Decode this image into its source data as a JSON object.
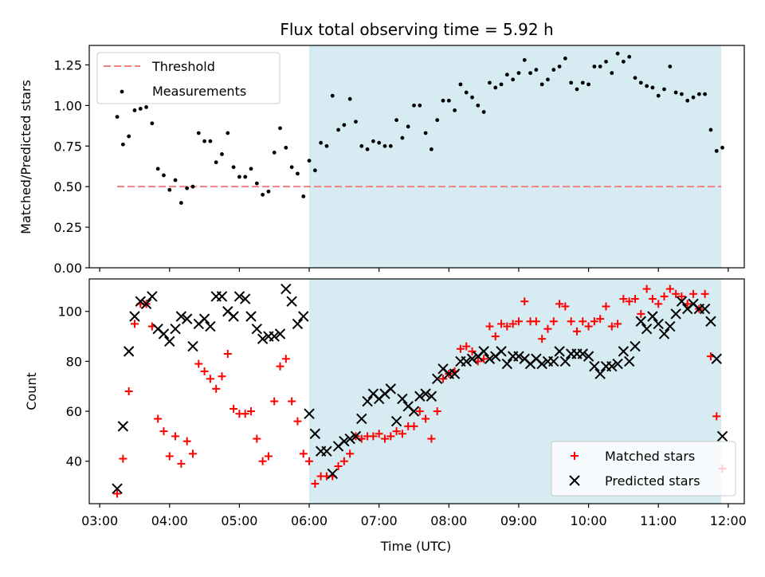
{
  "title": "Flux total observing time = 5.92 h",
  "colors": {
    "threshold": "#f08080",
    "measurements": "#000000",
    "matched": "#ff0000",
    "predicted": "#000000",
    "shade": "#add8e6"
  },
  "chart_data": [
    {
      "type": "scatter",
      "ylabel": "Matched/Predicted stars",
      "xlim_hours": [
        2.85,
        12.23
      ],
      "ylim": [
        0,
        1.37
      ],
      "yticks": [
        "0.00",
        "0.25",
        "0.50",
        "0.75",
        "1.00",
        "1.25"
      ],
      "ytick_values": [
        0,
        0.25,
        0.5,
        0.75,
        1.0,
        1.25
      ],
      "shaded_span": [
        "06:00",
        "11:54"
      ],
      "threshold": {
        "name": "Threshold",
        "value": 0.5,
        "x_start": "03:15",
        "x_end": "11:54"
      },
      "legend": {
        "location": "upper left",
        "entries": [
          "Threshold",
          "Measurements"
        ]
      },
      "series": [
        {
          "name": "Measurements",
          "x": [
            "03:15",
            "03:20",
            "03:25",
            "03:30",
            "03:35",
            "03:40",
            "03:45",
            "03:50",
            "03:55",
            "04:00",
            "04:05",
            "04:10",
            "04:15",
            "04:20",
            "04:25",
            "04:30",
            "04:35",
            "04:40",
            "04:45",
            "04:50",
            "04:55",
            "05:00",
            "05:05",
            "05:10",
            "05:15",
            "05:20",
            "05:25",
            "05:30",
            "05:35",
            "05:40",
            "05:45",
            "05:50",
            "05:55",
            "06:00",
            "06:05",
            "06:10",
            "06:15",
            "06:20",
            "06:25",
            "06:30",
            "06:35",
            "06:40",
            "06:45",
            "06:50",
            "06:55",
            "07:00",
            "07:05",
            "07:10",
            "07:15",
            "07:20",
            "07:25",
            "07:30",
            "07:35",
            "07:40",
            "07:45",
            "07:50",
            "07:55",
            "08:00",
            "08:05",
            "08:10",
            "08:15",
            "08:20",
            "08:25",
            "08:30",
            "08:35",
            "08:40",
            "08:45",
            "08:50",
            "08:55",
            "09:00",
            "09:05",
            "09:10",
            "09:15",
            "09:20",
            "09:25",
            "09:30",
            "09:35",
            "09:40",
            "09:45",
            "09:50",
            "09:55",
            "10:00",
            "10:05",
            "10:10",
            "10:15",
            "10:20",
            "10:25",
            "10:30",
            "10:35",
            "10:40",
            "10:45",
            "10:50",
            "10:55",
            "11:00",
            "11:05",
            "11:10",
            "11:15",
            "11:20",
            "11:25",
            "11:30",
            "11:35",
            "11:40",
            "11:45",
            "11:50",
            "11:55"
          ],
          "y": [
            0.93,
            0.76,
            0.81,
            0.97,
            0.98,
            0.99,
            0.89,
            0.61,
            0.57,
            0.48,
            0.54,
            0.4,
            0.49,
            0.5,
            0.83,
            0.78,
            0.78,
            0.65,
            0.7,
            0.83,
            0.62,
            0.56,
            0.56,
            0.61,
            0.52,
            0.45,
            0.47,
            0.71,
            0.86,
            0.74,
            0.62,
            0.58,
            0.44,
            0.66,
            0.6,
            0.77,
            0.75,
            1.06,
            0.85,
            0.88,
            1.04,
            0.9,
            0.75,
            0.73,
            0.78,
            0.77,
            0.75,
            0.75,
            0.91,
            0.8,
            0.87,
            1.0,
            1.0,
            0.83,
            0.73,
            0.91,
            1.03,
            1.03,
            0.97,
            1.13,
            1.08,
            1.05,
            1.0,
            0.96,
            1.14,
            1.11,
            1.13,
            1.19,
            1.16,
            1.2,
            1.28,
            1.2,
            1.22,
            1.13,
            1.16,
            1.22,
            1.24,
            1.29,
            1.14,
            1.1,
            1.14,
            1.13,
            1.24,
            1.24,
            1.27,
            1.2,
            1.32,
            1.27,
            1.3,
            1.17,
            1.14,
            1.12,
            1.11,
            1.06,
            1.1,
            1.24,
            1.08,
            1.07,
            1.03,
            1.05,
            1.07,
            1.07,
            0.85,
            0.72,
            0.74
          ]
        }
      ]
    },
    {
      "type": "scatter",
      "xlabel": "Time (UTC)",
      "ylabel": "Count",
      "xlim_hours": [
        2.85,
        12.23
      ],
      "ylim": [
        23,
        113
      ],
      "yticks": [
        "40",
        "60",
        "80",
        "100"
      ],
      "ytick_values": [
        40,
        60,
        80,
        100
      ],
      "xticks": [
        "03:00",
        "04:00",
        "05:00",
        "06:00",
        "07:00",
        "08:00",
        "09:00",
        "10:00",
        "11:00",
        "12:00"
      ],
      "xtick_hours": [
        3,
        4,
        5,
        6,
        7,
        8,
        9,
        10,
        11,
        12
      ],
      "shaded_span": [
        "06:00",
        "11:54"
      ],
      "legend": {
        "location": "lower right",
        "entries": [
          "Matched stars",
          "Predicted stars"
        ]
      },
      "series": [
        {
          "name": "Matched stars",
          "marker": "+",
          "x": [
            "03:15",
            "03:20",
            "03:25",
            "03:30",
            "03:35",
            "03:40",
            "03:45",
            "03:50",
            "03:55",
            "04:00",
            "04:05",
            "04:10",
            "04:15",
            "04:20",
            "04:25",
            "04:30",
            "04:35",
            "04:40",
            "04:45",
            "04:50",
            "04:55",
            "05:00",
            "05:05",
            "05:10",
            "05:15",
            "05:20",
            "05:25",
            "05:30",
            "05:35",
            "05:40",
            "05:45",
            "05:50",
            "05:55",
            "06:00",
            "06:05",
            "06:10",
            "06:15",
            "06:20",
            "06:25",
            "06:30",
            "06:35",
            "06:40",
            "06:45",
            "06:50",
            "06:55",
            "07:00",
            "07:05",
            "07:10",
            "07:15",
            "07:20",
            "07:25",
            "07:30",
            "07:35",
            "07:40",
            "07:45",
            "07:50",
            "07:55",
            "08:00",
            "08:05",
            "08:10",
            "08:15",
            "08:20",
            "08:25",
            "08:30",
            "08:35",
            "08:40",
            "08:45",
            "08:50",
            "08:55",
            "09:00",
            "09:05",
            "09:10",
            "09:15",
            "09:20",
            "09:25",
            "09:30",
            "09:35",
            "09:40",
            "09:45",
            "09:50",
            "09:55",
            "10:00",
            "10:05",
            "10:10",
            "10:15",
            "10:20",
            "10:25",
            "10:30",
            "10:35",
            "10:40",
            "10:45",
            "10:50",
            "10:55",
            "11:00",
            "11:05",
            "11:10",
            "11:15",
            "11:20",
            "11:25",
            "11:30",
            "11:35",
            "11:40",
            "11:45",
            "11:50",
            "11:55"
          ],
          "y": [
            27,
            41,
            68,
            95,
            103,
            103,
            94,
            57,
            52,
            42,
            50,
            39,
            48,
            43,
            79,
            76,
            73,
            69,
            74,
            83,
            61,
            59,
            59,
            60,
            49,
            40,
            42,
            64,
            78,
            81,
            64,
            56,
            43,
            40,
            31,
            34,
            34,
            34,
            38,
            40,
            43,
            50,
            49,
            50,
            50,
            51,
            49,
            50,
            52,
            51,
            54,
            54,
            60,
            57,
            49,
            60,
            73,
            75,
            76,
            85,
            86,
            84,
            80,
            81,
            94,
            90,
            95,
            94,
            95,
            96,
            104,
            96,
            96,
            89,
            93,
            96,
            103,
            102,
            96,
            92,
            96,
            94,
            96,
            97,
            102,
            94,
            95,
            105,
            104,
            105,
            99,
            109,
            105,
            103,
            106,
            109,
            107,
            106,
            103,
            107,
            101,
            107,
            82,
            58,
            37
          ]
        },
        {
          "name": "Predicted stars",
          "marker": "x",
          "x": [
            "03:15",
            "03:20",
            "03:25",
            "03:30",
            "03:35",
            "03:40",
            "03:45",
            "03:50",
            "03:55",
            "04:00",
            "04:05",
            "04:10",
            "04:15",
            "04:20",
            "04:25",
            "04:30",
            "04:35",
            "04:40",
            "04:45",
            "04:50",
            "04:55",
            "05:00",
            "05:05",
            "05:10",
            "05:15",
            "05:20",
            "05:25",
            "05:30",
            "05:35",
            "05:40",
            "05:45",
            "05:50",
            "05:55",
            "06:00",
            "06:05",
            "06:10",
            "06:15",
            "06:20",
            "06:25",
            "06:30",
            "06:35",
            "06:40",
            "06:45",
            "06:50",
            "06:55",
            "07:00",
            "07:05",
            "07:10",
            "07:15",
            "07:20",
            "07:25",
            "07:30",
            "07:35",
            "07:40",
            "07:45",
            "07:50",
            "07:55",
            "08:00",
            "08:05",
            "08:10",
            "08:15",
            "08:20",
            "08:25",
            "08:30",
            "08:35",
            "08:40",
            "08:45",
            "08:50",
            "08:55",
            "09:00",
            "09:05",
            "09:10",
            "09:15",
            "09:20",
            "09:25",
            "09:30",
            "09:35",
            "09:40",
            "09:45",
            "09:50",
            "09:55",
            "10:00",
            "10:05",
            "10:10",
            "10:15",
            "10:20",
            "10:25",
            "10:30",
            "10:35",
            "10:40",
            "10:45",
            "10:50",
            "10:55",
            "11:00",
            "11:05",
            "11:10",
            "11:15",
            "11:20",
            "11:25",
            "11:30",
            "11:35",
            "11:40",
            "11:45",
            "11:50",
            "11:55"
          ],
          "y": [
            29,
            54,
            84,
            98,
            104,
            103,
            106,
            93,
            91,
            88,
            93,
            98,
            97,
            86,
            95,
            97,
            94,
            106,
            106,
            100,
            98,
            106,
            105,
            98,
            93,
            89,
            90,
            90,
            91,
            109,
            104,
            95,
            98,
            59,
            51,
            44,
            44,
            35,
            46,
            48,
            49,
            50,
            57,
            64,
            67,
            65,
            67,
            69,
            56,
            65,
            62,
            60,
            66,
            67,
            66,
            73,
            77,
            75,
            75,
            80,
            80,
            81,
            82,
            84,
            81,
            82,
            84,
            79,
            82,
            82,
            81,
            79,
            81,
            79,
            80,
            80,
            84,
            80,
            83,
            83,
            83,
            82,
            78,
            75,
            78,
            78,
            79,
            84,
            80,
            86,
            96,
            93,
            98,
            95,
            91,
            94,
            99,
            104,
            101,
            103,
            101,
            101,
            96,
            81,
            50
          ]
        }
      ]
    }
  ]
}
